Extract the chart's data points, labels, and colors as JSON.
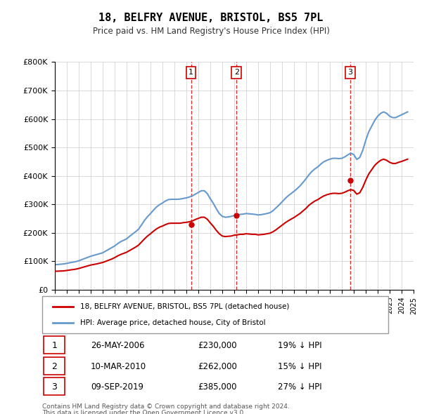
{
  "title": "18, BELFRY AVENUE, BRISTOL, BS5 7PL",
  "subtitle": "Price paid vs. HM Land Registry's House Price Index (HPI)",
  "ylabel": "",
  "xlabel": "",
  "ylim": [
    0,
    800000
  ],
  "yticks": [
    0,
    100000,
    200000,
    300000,
    400000,
    500000,
    600000,
    700000,
    800000
  ],
  "ytick_labels": [
    "£0",
    "£100K",
    "£200K",
    "£300K",
    "£400K",
    "£500K",
    "£600K",
    "£700K",
    "£800K"
  ],
  "sale_dates": [
    2006.39,
    2010.19,
    2019.69
  ],
  "sale_prices": [
    230000,
    262000,
    385000
  ],
  "sale_labels": [
    "1",
    "2",
    "3"
  ],
  "sale_info": [
    {
      "num": "1",
      "date": "26-MAY-2006",
      "price": "£230,000",
      "hpi": "19% ↓ HPI"
    },
    {
      "num": "2",
      "date": "10-MAR-2010",
      "price": "£262,000",
      "hpi": "15% ↓ HPI"
    },
    {
      "num": "3",
      "date": "09-SEP-2019",
      "price": "£385,000",
      "hpi": "27% ↓ HPI"
    }
  ],
  "hpi_color": "#6699cc",
  "sale_color": "#cc0000",
  "dashed_color": "#cc0000",
  "background_color": "#ffffff",
  "grid_color": "#cccccc",
  "legend1": "18, BELFRY AVENUE, BRISTOL, BS5 7PL (detached house)",
  "legend2": "HPI: Average price, detached house, City of Bristol",
  "footer1": "Contains HM Land Registry data © Crown copyright and database right 2024.",
  "footer2": "This data is licensed under the Open Government Licence v3.0.",
  "hpi_x": [
    1995.0,
    1995.25,
    1995.5,
    1995.75,
    1996.0,
    1996.25,
    1996.5,
    1996.75,
    1997.0,
    1997.25,
    1997.5,
    1997.75,
    1998.0,
    1998.25,
    1998.5,
    1998.75,
    1999.0,
    1999.25,
    1999.5,
    1999.75,
    2000.0,
    2000.25,
    2000.5,
    2000.75,
    2001.0,
    2001.25,
    2001.5,
    2001.75,
    2002.0,
    2002.25,
    2002.5,
    2002.75,
    2003.0,
    2003.25,
    2003.5,
    2003.75,
    2004.0,
    2004.25,
    2004.5,
    2004.75,
    2005.0,
    2005.25,
    2005.5,
    2005.75,
    2006.0,
    2006.25,
    2006.5,
    2006.75,
    2007.0,
    2007.25,
    2007.5,
    2007.75,
    2008.0,
    2008.25,
    2008.5,
    2008.75,
    2009.0,
    2009.25,
    2009.5,
    2009.75,
    2010.0,
    2010.25,
    2010.5,
    2010.75,
    2011.0,
    2011.25,
    2011.5,
    2011.75,
    2012.0,
    2012.25,
    2012.5,
    2012.75,
    2013.0,
    2013.25,
    2013.5,
    2013.75,
    2014.0,
    2014.25,
    2014.5,
    2014.75,
    2015.0,
    2015.25,
    2015.5,
    2015.75,
    2016.0,
    2016.25,
    2016.5,
    2016.75,
    2017.0,
    2017.25,
    2017.5,
    2017.75,
    2018.0,
    2018.25,
    2018.5,
    2018.75,
    2019.0,
    2019.25,
    2019.5,
    2019.75,
    2020.0,
    2020.25,
    2020.5,
    2020.75,
    2021.0,
    2021.25,
    2021.5,
    2021.75,
    2022.0,
    2022.25,
    2022.5,
    2022.75,
    2023.0,
    2023.25,
    2023.5,
    2023.75,
    2024.0,
    2024.25,
    2024.5
  ],
  "hpi_y": [
    88000,
    89000,
    90000,
    91000,
    93000,
    95000,
    97000,
    99000,
    102000,
    106000,
    110000,
    114000,
    118000,
    121000,
    124000,
    127000,
    130000,
    136000,
    142000,
    148000,
    154000,
    162000,
    169000,
    174000,
    179000,
    188000,
    196000,
    204000,
    213000,
    228000,
    244000,
    257000,
    268000,
    280000,
    291000,
    299000,
    305000,
    312000,
    317000,
    318000,
    318000,
    318000,
    319000,
    321000,
    323000,
    326000,
    330000,
    336000,
    342000,
    348000,
    348000,
    338000,
    320000,
    304000,
    285000,
    268000,
    258000,
    255000,
    256000,
    258000,
    261000,
    263000,
    265000,
    266000,
    268000,
    267000,
    266000,
    265000,
    263000,
    264000,
    266000,
    268000,
    271000,
    278000,
    288000,
    298000,
    309000,
    320000,
    330000,
    338000,
    346000,
    355000,
    365000,
    377000,
    390000,
    404000,
    416000,
    425000,
    432000,
    442000,
    450000,
    455000,
    459000,
    462000,
    462000,
    461000,
    462000,
    467000,
    474000,
    480000,
    475000,
    458000,
    465000,
    490000,
    525000,
    555000,
    575000,
    595000,
    610000,
    620000,
    625000,
    620000,
    610000,
    605000,
    605000,
    610000,
    615000,
    620000,
    625000
  ],
  "red_x": [
    1995.0,
    1995.25,
    1995.5,
    1995.75,
    1996.0,
    1996.25,
    1996.5,
    1996.75,
    1997.0,
    1997.25,
    1997.5,
    1997.75,
    1998.0,
    1998.25,
    1998.5,
    1998.75,
    1999.0,
    1999.25,
    1999.5,
    1999.75,
    2000.0,
    2000.25,
    2000.5,
    2000.75,
    2001.0,
    2001.25,
    2001.5,
    2001.75,
    2002.0,
    2002.25,
    2002.5,
    2002.75,
    2003.0,
    2003.25,
    2003.5,
    2003.75,
    2004.0,
    2004.25,
    2004.5,
    2004.75,
    2005.0,
    2005.25,
    2005.5,
    2005.75,
    2006.0,
    2006.25,
    2006.5,
    2006.75,
    2007.0,
    2007.25,
    2007.5,
    2007.75,
    2008.0,
    2008.25,
    2008.5,
    2008.75,
    2009.0,
    2009.25,
    2009.5,
    2009.75,
    2010.0,
    2010.25,
    2010.5,
    2010.75,
    2011.0,
    2011.25,
    2011.5,
    2011.75,
    2012.0,
    2012.25,
    2012.5,
    2012.75,
    2013.0,
    2013.25,
    2013.5,
    2013.75,
    2014.0,
    2014.25,
    2014.5,
    2014.75,
    2015.0,
    2015.25,
    2015.5,
    2015.75,
    2016.0,
    2016.25,
    2016.5,
    2016.75,
    2017.0,
    2017.25,
    2017.5,
    2017.75,
    2018.0,
    2018.25,
    2018.5,
    2018.75,
    2019.0,
    2019.25,
    2019.5,
    2019.75,
    2020.0,
    2020.25,
    2020.5,
    2020.75,
    2021.0,
    2021.25,
    2021.5,
    2021.75,
    2022.0,
    2022.25,
    2022.5,
    2022.75,
    2023.0,
    2023.25,
    2023.5,
    2023.75,
    2024.0,
    2024.25,
    2024.5
  ],
  "red_y": [
    65000,
    65500,
    66000,
    66500,
    68000,
    69500,
    71000,
    72500,
    75000,
    78000,
    81000,
    84000,
    87000,
    89000,
    91000,
    93500,
    96000,
    100000,
    104000,
    108000,
    113000,
    119000,
    124000,
    128000,
    132000,
    138000,
    144000,
    150000,
    157000,
    168000,
    179000,
    189000,
    197000,
    206000,
    214000,
    220000,
    224000,
    229000,
    233000,
    234000,
    234000,
    234000,
    234000,
    236000,
    237000,
    239000,
    242000,
    247000,
    251000,
    255000,
    255000,
    248000,
    235000,
    223000,
    209000,
    197000,
    189000,
    187000,
    188000,
    189000,
    192000,
    193000,
    195000,
    195000,
    197000,
    196000,
    195000,
    195000,
    193000,
    194000,
    195000,
    197000,
    199000,
    204000,
    211000,
    219000,
    227000,
    235000,
    242000,
    248000,
    254000,
    261000,
    268000,
    277000,
    286000,
    297000,
    305000,
    312000,
    317000,
    324000,
    330000,
    334000,
    337000,
    339000,
    339000,
    338000,
    339000,
    343000,
    348000,
    352000,
    349000,
    336000,
    341000,
    360000,
    385000,
    407000,
    422000,
    437000,
    447000,
    455000,
    459000,
    455000,
    448000,
    444000,
    444000,
    448000,
    451000,
    455000,
    459000
  ]
}
